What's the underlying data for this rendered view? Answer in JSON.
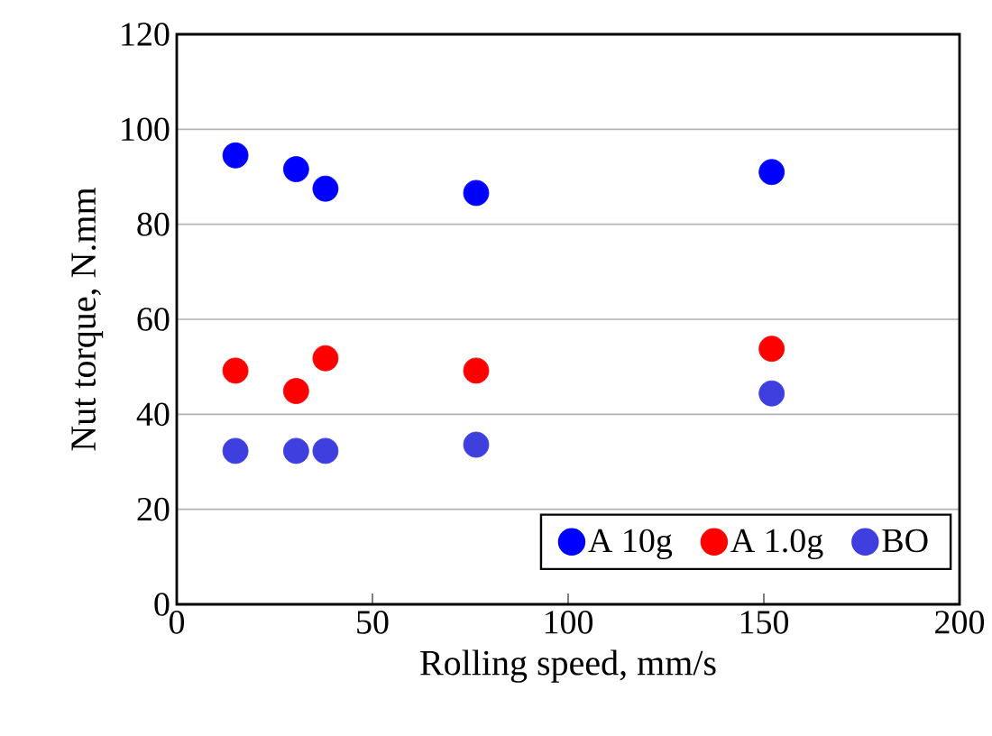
{
  "chart_data": {
    "type": "scatter",
    "xlabel": "Rolling  speed, mm/s",
    "ylabel": "Nut torque, N.mm",
    "xlim": [
      0,
      200
    ],
    "xticks": [
      0,
      50,
      100,
      150,
      200
    ],
    "ylim": [
      0,
      120
    ],
    "yticks": [
      0,
      20,
      40,
      60,
      80,
      100,
      120
    ],
    "grid": "y",
    "legend": "bottom right",
    "marker": "circle",
    "series": [
      {
        "name": "A 10g",
        "color": "#0000ff",
        "x": [
          15,
          30.5,
          38,
          76.5,
          152
        ],
        "values": [
          94.5,
          91.6,
          87.5,
          86.6,
          91
        ]
      },
      {
        "name": "A 1.0g",
        "color": "#ff0000",
        "x": [
          15,
          30.5,
          38,
          76.5,
          152
        ],
        "values": [
          49.2,
          44.9,
          51.8,
          49.2,
          53.8
        ]
      },
      {
        "name": "BO",
        "color": "#3f3fe0",
        "x": [
          15,
          30.5,
          38,
          76.5,
          152
        ],
        "values": [
          32.3,
          32.3,
          32.3,
          33.6,
          44.4
        ]
      }
    ]
  }
}
